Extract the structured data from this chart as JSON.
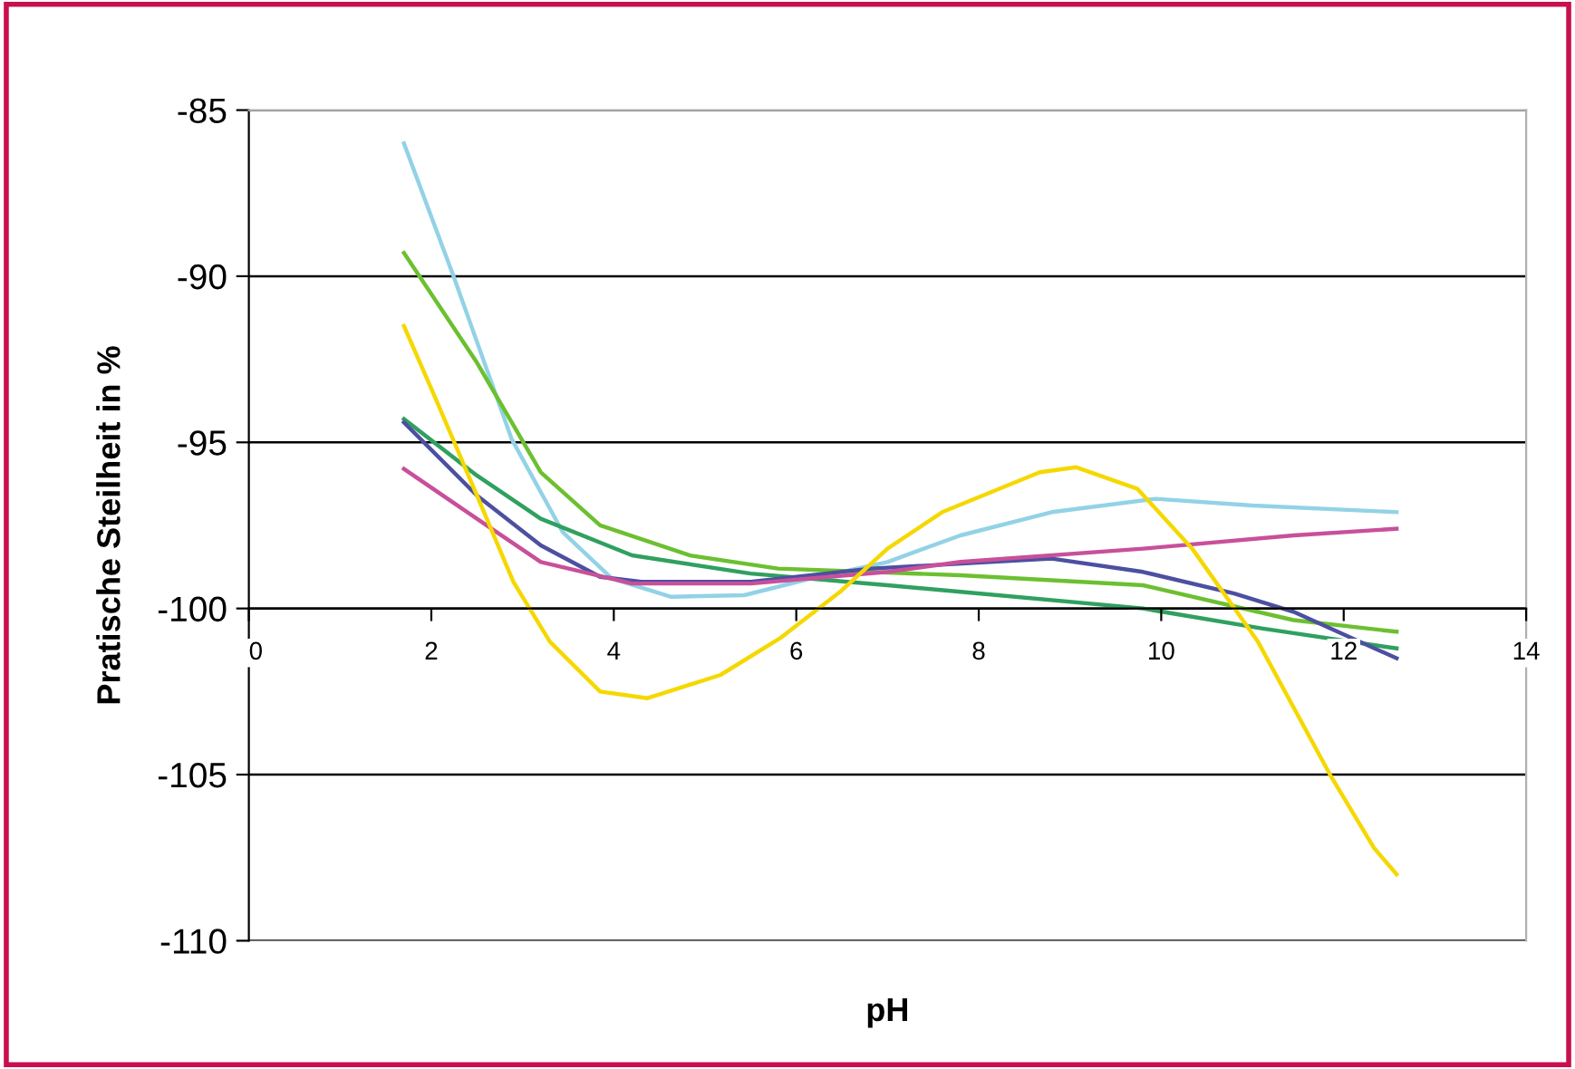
{
  "chart_data": {
    "type": "line",
    "xlabel": "pH",
    "ylabel": "Pratische Steilheit in %",
    "xlim": [
      0,
      14
    ],
    "xticks": [
      0,
      2,
      4,
      6,
      8,
      10,
      12,
      14
    ],
    "ylim": [
      -110,
      -85
    ],
    "yticks": [
      -85,
      -90,
      -95,
      -100,
      -105,
      -110
    ],
    "grid": "y",
    "legend": false,
    "marker": "none",
    "line_style": "solid",
    "series": [
      {
        "color": "#92d2e6",
        "x": [
          1.7,
          2.25,
          2.88,
          3.44,
          3.98,
          4.63,
          5.43,
          6.16,
          7.0,
          7.8,
          8.8,
          9.94,
          11.0,
          12.58
        ],
        "values": [
          -86.0,
          -90.05,
          -94.9,
          -97.7,
          -99.1,
          -99.65,
          -99.6,
          -99.1,
          -98.6,
          -97.8,
          -97.1,
          -96.7,
          -96.9,
          -97.1
        ]
      },
      {
        "color": "#6cc030",
        "x": [
          1.7,
          2.5,
          3.2,
          3.85,
          4.83,
          5.8,
          6.8,
          7.8,
          9.8,
          11.45,
          12.58
        ],
        "values": [
          -89.3,
          -92.6,
          -95.9,
          -97.5,
          -98.4,
          -98.8,
          -98.9,
          -99.0,
          -99.3,
          -100.35,
          -100.7
        ]
      },
      {
        "color": "#30a060",
        "x": [
          1.7,
          2.5,
          3.2,
          4.2,
          5.5,
          7.0,
          7.8,
          9.8,
          11.1,
          12.58
        ],
        "values": [
          -94.3,
          -96.0,
          -97.3,
          -98.4,
          -98.95,
          -99.3,
          -99.5,
          -100.0,
          -100.6,
          -101.2
        ]
      },
      {
        "color": "#4c50a0",
        "x": [
          1.7,
          2.5,
          3.2,
          3.85,
          4.3,
          5.5,
          6.82,
          8.8,
          9.8,
          10.8,
          11.45,
          12.58
        ],
        "values": [
          -94.4,
          -96.6,
          -98.1,
          -99.05,
          -99.2,
          -99.2,
          -98.8,
          -98.5,
          -98.9,
          -99.55,
          -100.1,
          -101.5
        ]
      },
      {
        "color": "#c8509a",
        "x": [
          1.7,
          2.5,
          3.2,
          4.2,
          5.5,
          7.0,
          7.8,
          9.8,
          11.45,
          12.58
        ],
        "values": [
          -95.8,
          -97.3,
          -98.6,
          -99.25,
          -99.25,
          -98.9,
          -98.6,
          -98.2,
          -97.8,
          -97.6
        ]
      },
      {
        "color": "#f5d800",
        "x": [
          1.7,
          2.05,
          2.5,
          2.9,
          3.3,
          3.85,
          4.37,
          5.17,
          5.82,
          6.48,
          7.0,
          7.6,
          8.67,
          9.07,
          9.74,
          10.34,
          11.06,
          11.85,
          12.33,
          12.58
        ],
        "values": [
          -91.5,
          -93.7,
          -96.6,
          -99.2,
          -101.0,
          -102.5,
          -102.7,
          -102.0,
          -100.9,
          -99.5,
          -98.2,
          -97.1,
          -95.9,
          -95.75,
          -96.4,
          -98.2,
          -101.0,
          -105.0,
          -107.2,
          -108.0
        ]
      }
    ]
  }
}
